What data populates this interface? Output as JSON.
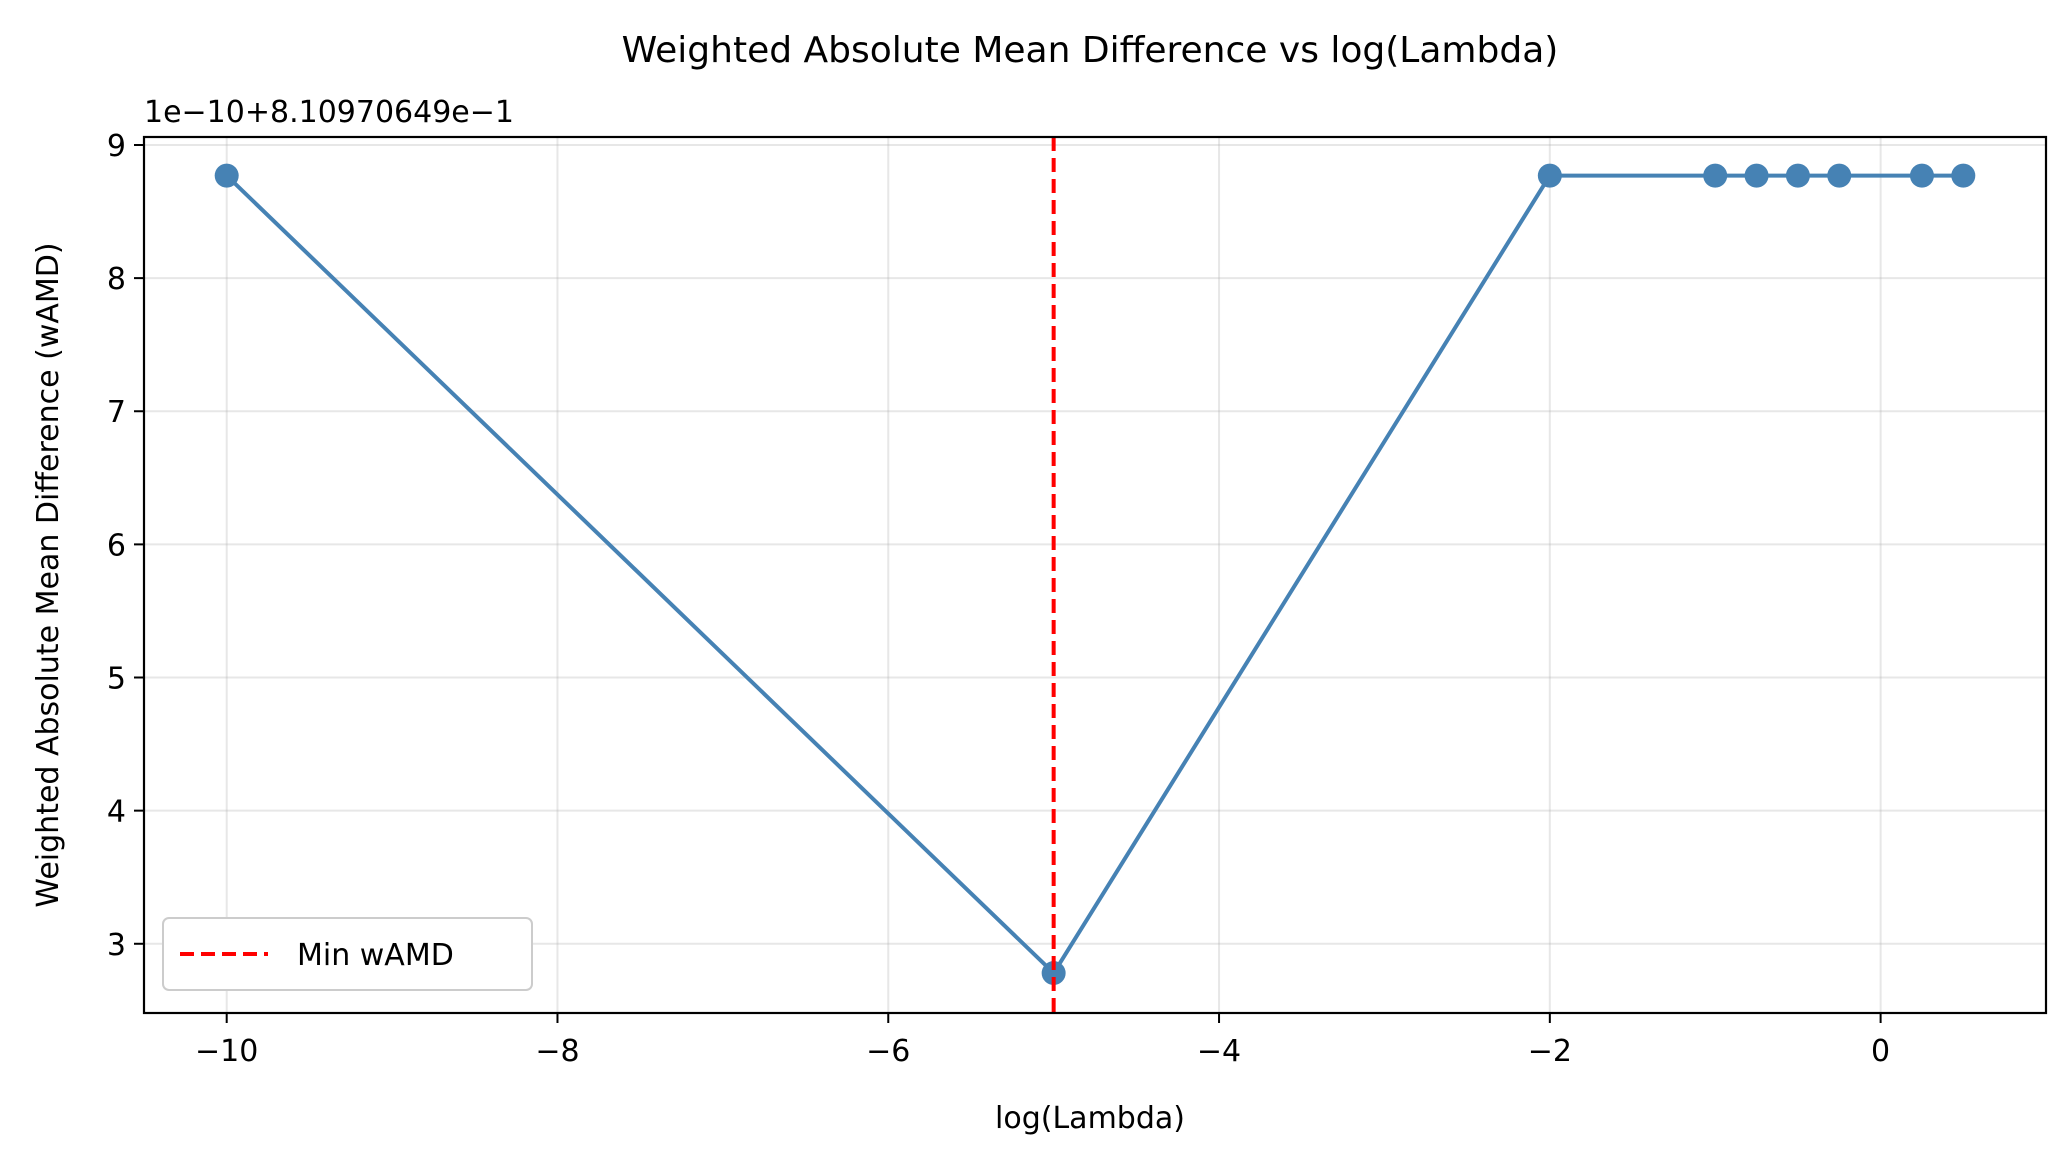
{
  "chart_data": {
    "type": "line",
    "title": "Weighted Absolute Mean Difference vs log(Lambda)",
    "xlabel": "log(Lambda)",
    "ylabel": "Weighted Absolute Mean Difference (wAMD)",
    "offset_label": "1e−10+8.10970649e−1",
    "xlim": [
      -10.5,
      1.0
    ],
    "ylim": [
      2.48,
      9.06
    ],
    "x_ticks": [
      -10,
      -8,
      -6,
      -4,
      -2,
      0
    ],
    "x_tick_labels": [
      "−10",
      "−8",
      "−6",
      "−4",
      "−2",
      "0"
    ],
    "y_ticks": [
      3,
      4,
      5,
      6,
      7,
      8,
      9
    ],
    "y_tick_labels": [
      "3",
      "4",
      "5",
      "6",
      "7",
      "8",
      "9"
    ],
    "grid": true,
    "series": [
      {
        "color": "#4682b4",
        "x": [
          -10,
          -5,
          -2,
          -1,
          -0.75,
          -0.5,
          -0.25,
          0.25,
          0.5
        ],
        "y": [
          8.77,
          2.78,
          8.77,
          8.77,
          8.77,
          8.77,
          8.77,
          8.77,
          8.77
        ]
      }
    ],
    "vline": {
      "x": -5,
      "color": "#ff0000",
      "label": "Min wAMD"
    },
    "legend": {
      "position": "lower-left",
      "entries": [
        "Min wAMD"
      ]
    }
  }
}
